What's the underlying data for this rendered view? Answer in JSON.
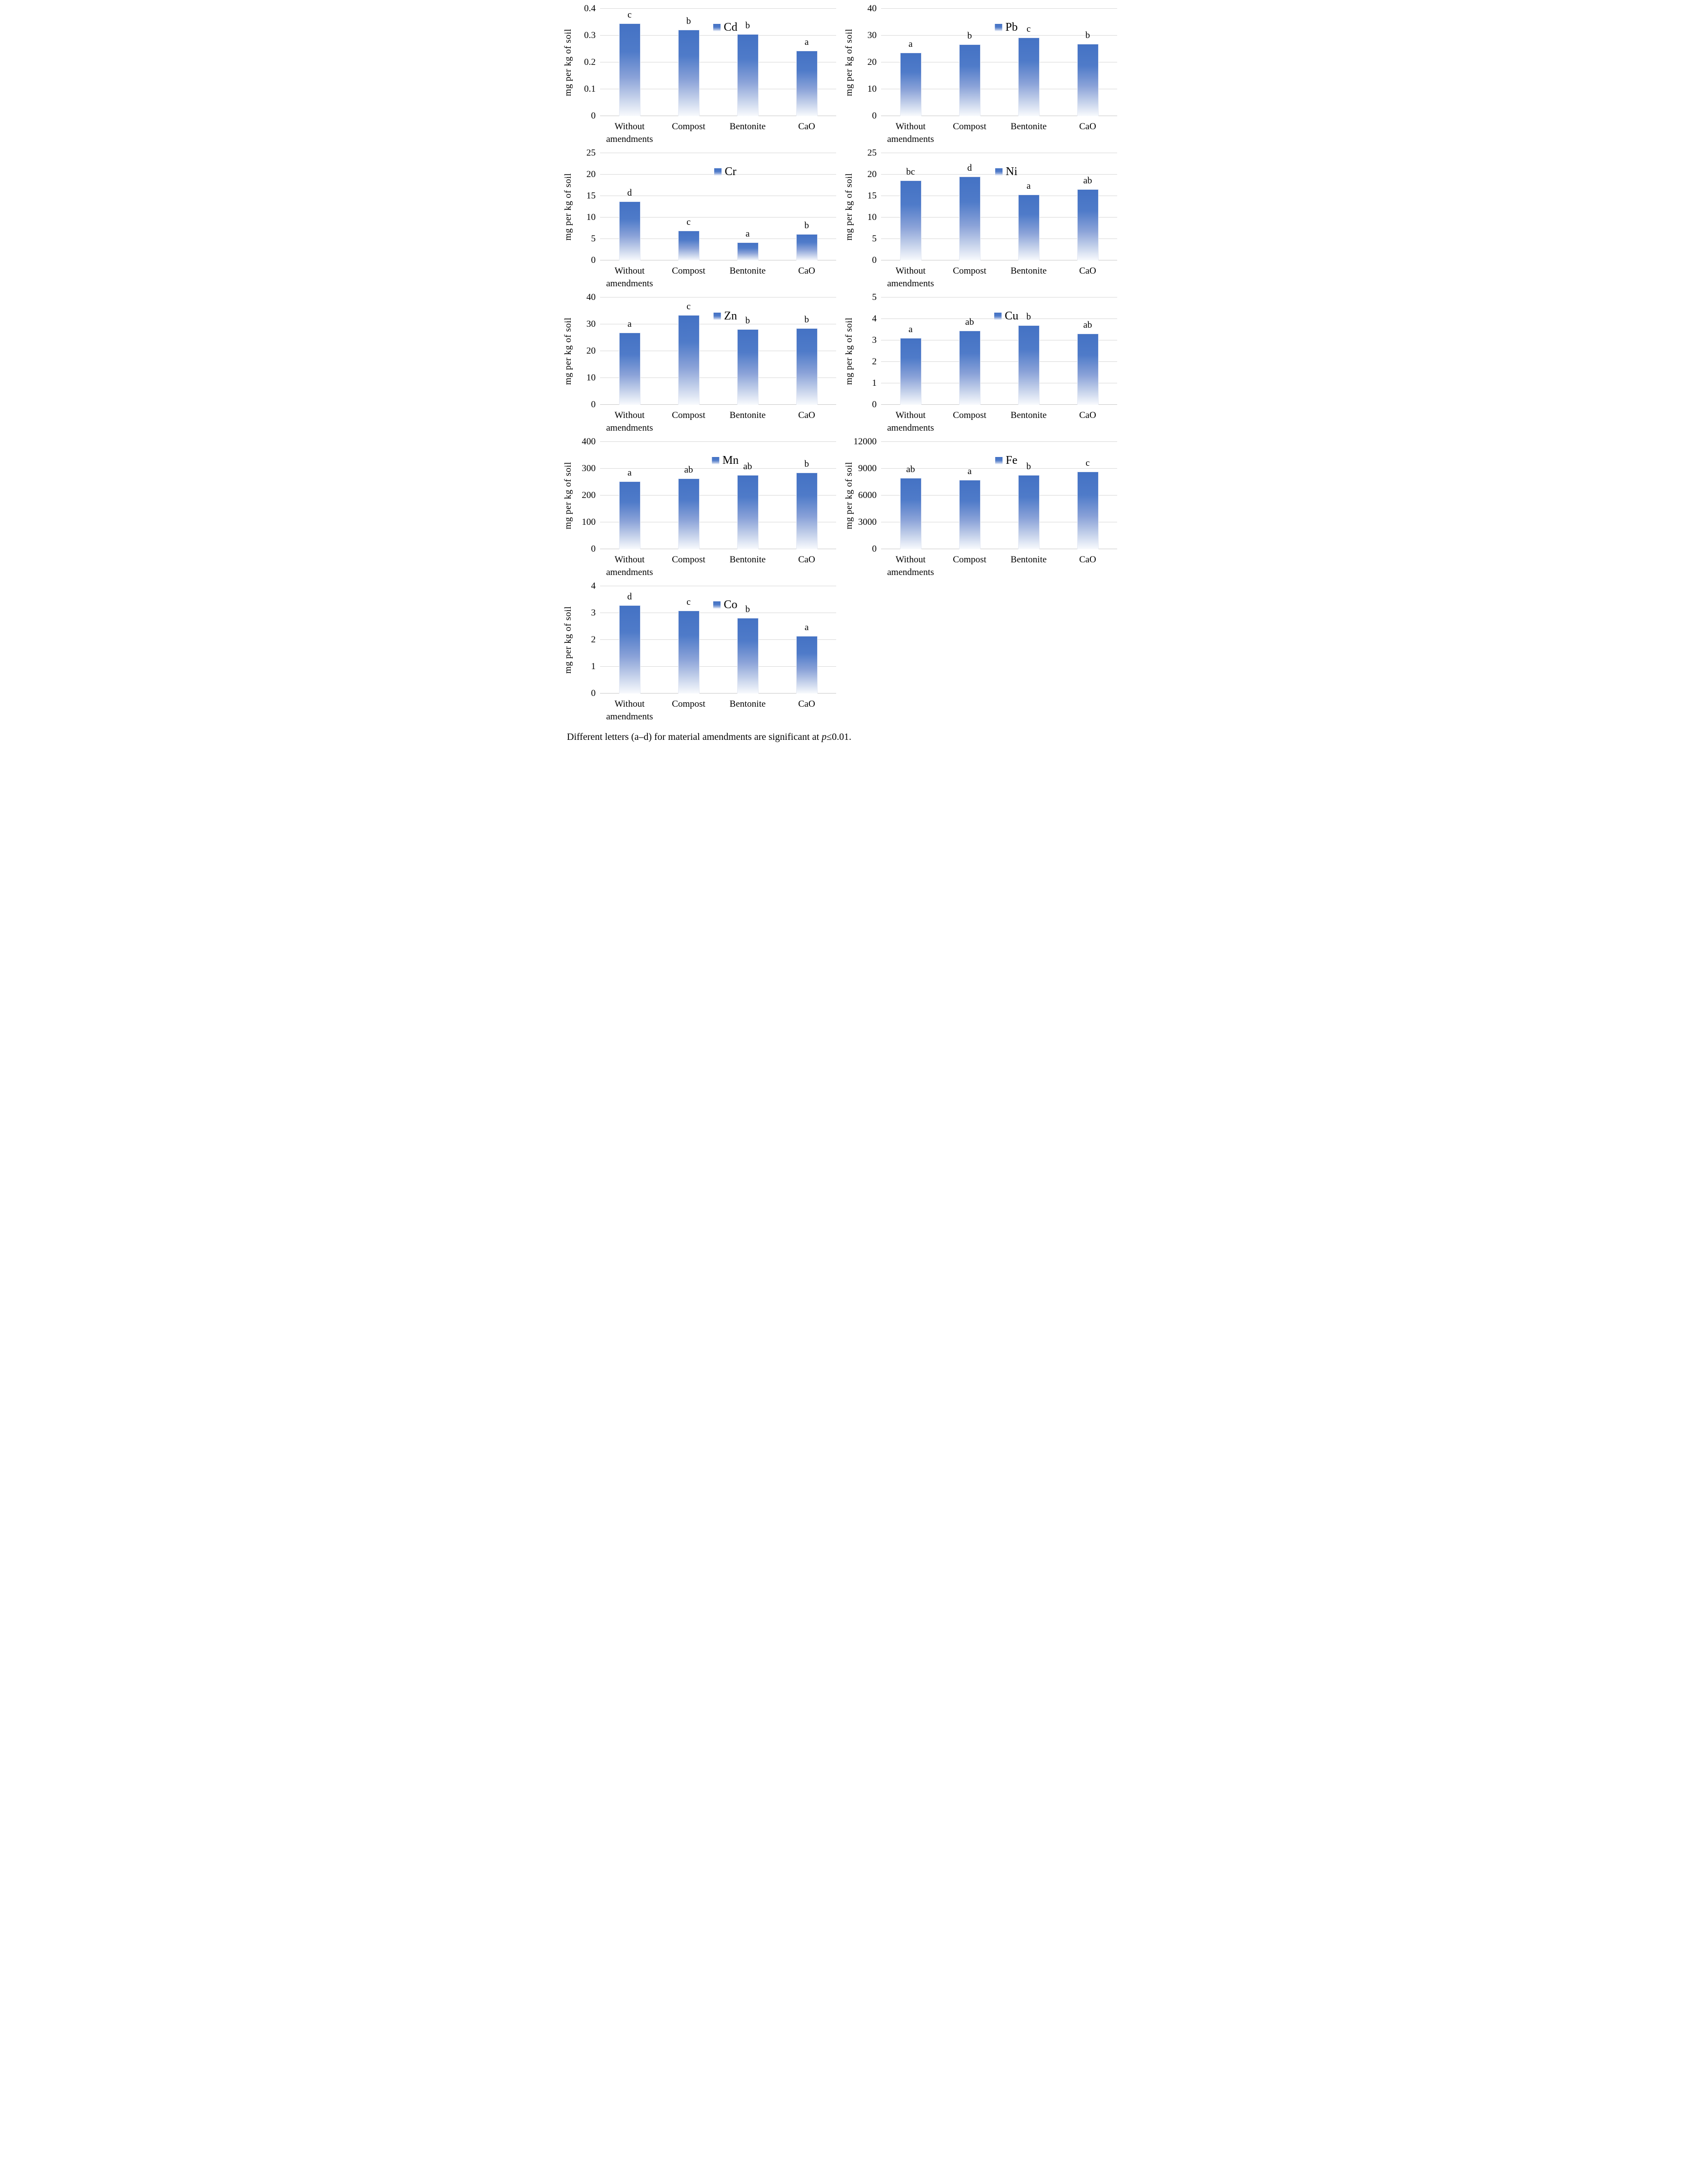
{
  "colors": {
    "bar_top": "#4472C4",
    "bar_bottom": "#f8fafd",
    "gridline": "#d9d9d9",
    "baseline": "#c9c9c9",
    "text": "#000000"
  },
  "footer": {
    "prefix": "Different letters (a–d) for material amendments are significant at ",
    "p": "p",
    "suffix": "≤0.01."
  },
  "chart_data": [
    {
      "type": "bar",
      "legend": "Cd",
      "ylabel": "mg per kg of soil",
      "categories": [
        "Without amendments",
        "Compost",
        "Bentonite",
        "CaO"
      ],
      "values": [
        0.345,
        0.322,
        0.306,
        0.243
      ],
      "sig_letters": [
        "c",
        "b",
        "b",
        "a"
      ],
      "ylim": [
        0,
        0.4
      ],
      "yticks": [
        0,
        0.1,
        0.2,
        0.3,
        0.4
      ],
      "ytick_labels": [
        "0",
        "0.1",
        "0.2",
        "0.3",
        "0.4"
      ],
      "grid": true,
      "legend_position": "top-center"
    },
    {
      "type": "bar",
      "legend": "Pb",
      "ylabel": "mg per kg of soil",
      "categories": [
        "Without amendments",
        "Compost",
        "Bentonite",
        "CaO"
      ],
      "values": [
        23.7,
        26.8,
        29.2,
        27.0
      ],
      "sig_letters": [
        "a",
        "b",
        "c",
        "b"
      ],
      "ylim": [
        0,
        40
      ],
      "yticks": [
        0,
        10,
        20,
        30,
        40
      ],
      "ytick_labels": [
        "0",
        "10",
        "20",
        "30",
        "40"
      ],
      "grid": true,
      "legend_position": "top-center"
    },
    {
      "type": "bar",
      "legend": "Cr",
      "ylabel": "mg per kg of soil",
      "categories": [
        "Without amendments",
        "Compost",
        "Bentonite",
        "CaO"
      ],
      "values": [
        13.8,
        6.9,
        4.2,
        6.1
      ],
      "sig_letters": [
        "d",
        "c",
        "a",
        "b"
      ],
      "ylim": [
        0,
        25
      ],
      "yticks": [
        0,
        5,
        10,
        15,
        20,
        25
      ],
      "ytick_labels": [
        "0",
        "5",
        "10",
        "15",
        "20",
        "25"
      ],
      "grid": true,
      "legend_position": "top-center"
    },
    {
      "type": "bar",
      "legend": "Ni",
      "ylabel": "mg per kg of soil",
      "categories": [
        "Without amendments",
        "Compost",
        "Bentonite",
        "CaO"
      ],
      "values": [
        18.6,
        19.6,
        15.3,
        16.6
      ],
      "sig_letters": [
        "bc",
        "d",
        "a",
        "ab"
      ],
      "ylim": [
        0,
        25
      ],
      "yticks": [
        0,
        5,
        10,
        15,
        20,
        25
      ],
      "ytick_labels": [
        "0",
        "5",
        "10",
        "15",
        "20",
        "25"
      ],
      "grid": true,
      "legend_position": "top-center"
    },
    {
      "type": "bar",
      "legend": "Zn",
      "ylabel": "mg per kg of soil",
      "categories": [
        "Without amendments",
        "Compost",
        "Bentonite",
        "CaO"
      ],
      "values": [
        27.0,
        33.5,
        28.1,
        28.5
      ],
      "sig_letters": [
        "a",
        "c",
        "b",
        "b"
      ],
      "ylim": [
        0,
        40
      ],
      "yticks": [
        0,
        10,
        20,
        30,
        40
      ],
      "ytick_labels": [
        "0",
        "10",
        "20",
        "30",
        "40"
      ],
      "grid": true,
      "legend_position": "top-center"
    },
    {
      "type": "bar",
      "legend": "Cu",
      "ylabel": "mg per kg of soil",
      "categories": [
        "Without amendments",
        "Compost",
        "Bentonite",
        "CaO"
      ],
      "values": [
        3.12,
        3.45,
        3.7,
        3.32
      ],
      "sig_letters": [
        "a",
        "ab",
        "b",
        "ab"
      ],
      "ylim": [
        0,
        5
      ],
      "yticks": [
        0,
        1,
        2,
        3,
        4,
        5
      ],
      "ytick_labels": [
        "0",
        "1",
        "2",
        "3",
        "4",
        "5"
      ],
      "grid": true,
      "legend_position": "top-center"
    },
    {
      "type": "bar",
      "legend": "Mn",
      "ylabel": "mg per kg of soil",
      "categories": [
        "Without amendments",
        "Compost",
        "Bentonite",
        "CaO"
      ],
      "values": [
        252,
        263,
        277,
        286
      ],
      "sig_letters": [
        "a",
        "ab",
        "ab",
        "b"
      ],
      "ylim": [
        0,
        400
      ],
      "yticks": [
        0,
        100,
        200,
        300,
        400
      ],
      "ytick_labels": [
        "0",
        "100",
        "200",
        "300",
        "400"
      ],
      "grid": true,
      "legend_position": "top-center"
    },
    {
      "type": "bar",
      "legend": "Fe",
      "ylabel": "mg per kg of soil",
      "categories": [
        "Without amendments",
        "Compost",
        "Bentonite",
        "CaO"
      ],
      "values": [
        7950,
        7750,
        8300,
        8700
      ],
      "sig_letters": [
        "ab",
        "a",
        "b",
        "c"
      ],
      "ylim": [
        0,
        12000
      ],
      "yticks": [
        0,
        3000,
        6000,
        9000,
        12000
      ],
      "ytick_labels": [
        "0",
        "3000",
        "6000",
        "9000",
        "12000"
      ],
      "grid": true,
      "legend_position": "top-center"
    },
    {
      "type": "bar",
      "legend": "Co",
      "ylabel": "mg per kg of soil",
      "categories": [
        "Without amendments",
        "Compost",
        "Bentonite",
        "CaO"
      ],
      "values": [
        3.3,
        3.1,
        2.82,
        2.15
      ],
      "sig_letters": [
        "d",
        "c",
        "b",
        "a"
      ],
      "ylim": [
        0,
        4
      ],
      "yticks": [
        0,
        1,
        2,
        3,
        4
      ],
      "ytick_labels": [
        "0",
        "1",
        "2",
        "3",
        "4"
      ],
      "grid": true,
      "legend_position": "top-center"
    }
  ]
}
